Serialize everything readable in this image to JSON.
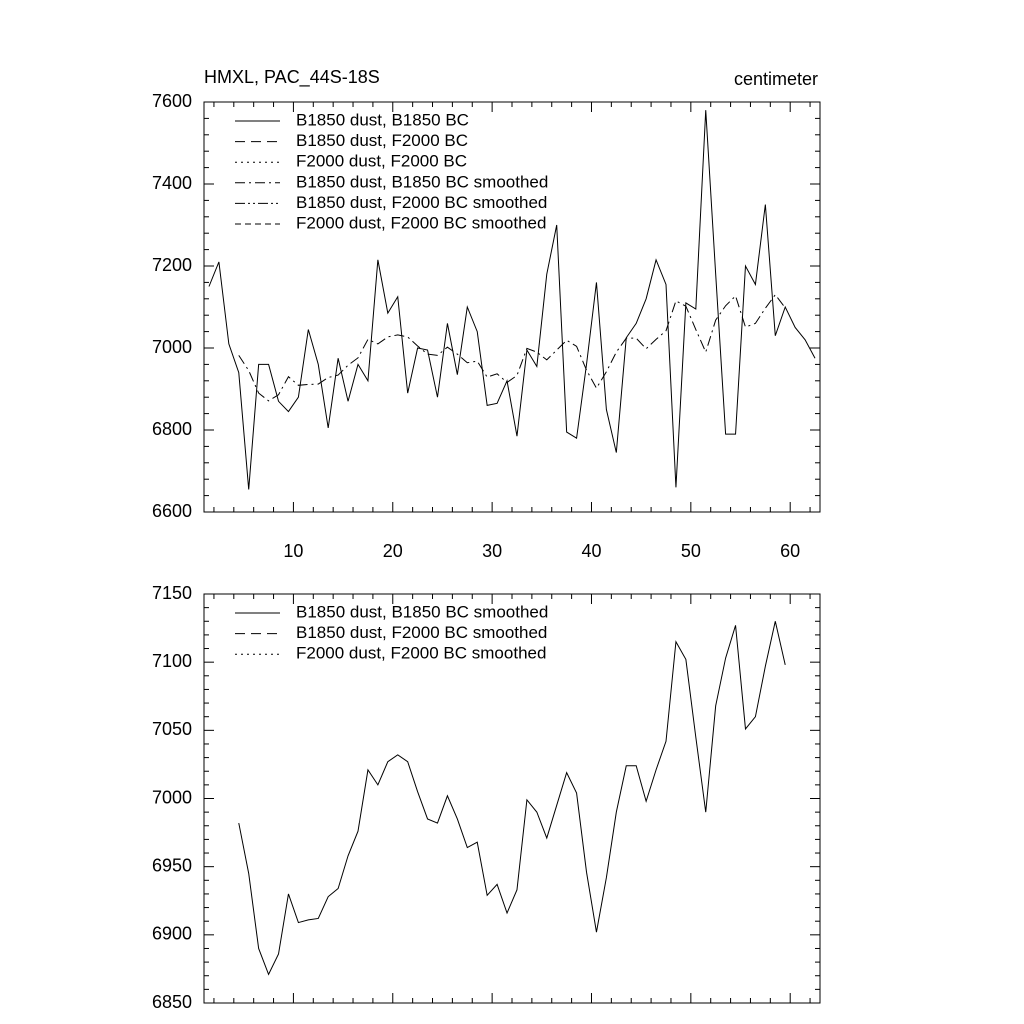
{
  "chart_data": [
    {
      "type": "line",
      "title": "HMXL, PAC_44S-18S",
      "units": "centimeter",
      "x": [
        1.5,
        2.5,
        3.5,
        4.5,
        5.5,
        6.5,
        7.5,
        8.5,
        9.5,
        10.5,
        11.5,
        12.5,
        13.5,
        14.5,
        15.5,
        16.5,
        17.5,
        18.5,
        19.5,
        20.5,
        21.5,
        22.5,
        23.5,
        24.5,
        25.5,
        26.5,
        27.5,
        28.5,
        29.5,
        30.5,
        31.5,
        32.5,
        33.5,
        34.5,
        35.5,
        36.5,
        37.5,
        38.5,
        39.5,
        40.5,
        41.5,
        42.5,
        43.5,
        44.5,
        45.5,
        46.5,
        47.5,
        48.5,
        49.5,
        50.5,
        51.5,
        52.5,
        53.5,
        54.5,
        55.5,
        56.5,
        57.5,
        58.5,
        59.5,
        60.5,
        61.5,
        62.5
      ],
      "xlim": [
        1,
        63
      ],
      "xticks": [
        10,
        20,
        30,
        40,
        50,
        60
      ],
      "ylim": [
        6600,
        7600
      ],
      "yticks": [
        6600,
        6800,
        7000,
        7200,
        7400,
        7600
      ],
      "series": [
        {
          "name": "B1850 dust, B1850 BC",
          "color": "#000000",
          "dash": "solid",
          "values": [
            7150,
            7210,
            7010,
            6940,
            6655,
            6960,
            6960,
            6870,
            6845,
            6880,
            7045,
            6960,
            6805,
            6975,
            6870,
            6960,
            6920,
            7215,
            7085,
            7125,
            6890,
            7000,
            6995,
            6880,
            7060,
            6935,
            7100,
            7040,
            6860,
            6865,
            6920,
            6785,
            6995,
            6955,
            7180,
            7300,
            6795,
            6780,
            6960,
            7160,
            6850,
            6745,
            7025,
            7060,
            7120,
            7215,
            7155,
            6660,
            7110,
            7095,
            7580,
            7180,
            6790,
            6790,
            7200,
            7155,
            7350,
            7030,
            7100,
            7050,
            7020,
            6975
          ]
        },
        {
          "name": "B1850 dust, F2000 BC",
          "color": "#000000",
          "dash": "dashed",
          "values": [
            null,
            null,
            null,
            null,
            null,
            null,
            null,
            null,
            null,
            null,
            null,
            null,
            null,
            null,
            null,
            null,
            null,
            null,
            null,
            null,
            null,
            null,
            null,
            null,
            null,
            null,
            null,
            null,
            null,
            null,
            null,
            null,
            null,
            null,
            null,
            null,
            null,
            null,
            null,
            null,
            null,
            null,
            null,
            null,
            null,
            null,
            null,
            null,
            null,
            null,
            null,
            null,
            null,
            null,
            null,
            null,
            null,
            null,
            null,
            null,
            null,
            null
          ]
        },
        {
          "name": "F2000 dust, F2000 BC",
          "color": "#000000",
          "dash": "dotted",
          "values": [
            null,
            null,
            null,
            null,
            null,
            null,
            null,
            null,
            null,
            null,
            null,
            null,
            null,
            null,
            null,
            null,
            null,
            null,
            null,
            null,
            null,
            null,
            null,
            null,
            null,
            null,
            null,
            null,
            null,
            null,
            null,
            null,
            null,
            null,
            null,
            null,
            null,
            null,
            null,
            null,
            null,
            null,
            null,
            null,
            null,
            null,
            null,
            null,
            null,
            null,
            null,
            null,
            null,
            null,
            null,
            null,
            null,
            null,
            null,
            null,
            null,
            null
          ]
        },
        {
          "name": "B1850 dust, B1850 BC smoothed",
          "color": "#000000",
          "dash": "dash-dot",
          "values": [
            null,
            null,
            null,
            6982,
            6945,
            6890,
            6871,
            6886,
            6930,
            6909,
            6911,
            6912,
            6928,
            6934,
            6958,
            6976,
            7021,
            7010,
            7027,
            7032,
            7027,
            7005,
            6985,
            6982,
            7002,
            6985,
            6964,
            6968,
            6929,
            6937,
            6916,
            6933,
            6999,
            6990,
            6971,
            6995,
            7019,
            7004,
            6946,
            6902,
            6942,
            6990,
            7024,
            7024,
            6998,
            7021,
            7042,
            7115,
            7102,
            7045,
            6990,
            7068,
            7103,
            7127,
            7051,
            7060,
            7097,
            7130,
            7098,
            null,
            null,
            null
          ]
        },
        {
          "name": "B1850 dust, F2000 BC smoothed",
          "color": "#000000",
          "dash": "dash-dot-dot",
          "values": [
            null,
            null,
            null,
            null,
            null,
            null,
            null,
            null,
            null,
            null,
            null,
            null,
            null,
            null,
            null,
            null,
            null,
            null,
            null,
            null,
            null,
            null,
            null,
            null,
            null,
            null,
            null,
            null,
            null,
            null,
            null,
            null,
            null,
            null,
            null,
            null,
            null,
            null,
            null,
            null,
            null,
            null,
            null,
            null,
            null,
            null,
            null,
            null,
            null,
            null,
            null,
            null,
            null,
            null,
            null,
            null,
            null,
            null,
            null,
            null,
            null,
            null
          ]
        },
        {
          "name": "F2000 dust, F2000 BC smoothed",
          "color": "#000000",
          "dash": "short-dashed",
          "values": [
            null,
            null,
            null,
            null,
            null,
            null,
            null,
            null,
            null,
            null,
            null,
            null,
            null,
            null,
            null,
            null,
            null,
            null,
            null,
            null,
            null,
            null,
            null,
            null,
            null,
            null,
            null,
            null,
            null,
            null,
            null,
            null,
            null,
            null,
            null,
            null,
            null,
            null,
            null,
            null,
            null,
            null,
            null,
            null,
            null,
            null,
            null,
            null,
            null,
            null,
            null,
            null,
            null,
            null,
            null,
            null,
            null,
            null,
            null,
            null,
            null,
            null
          ]
        }
      ]
    },
    {
      "type": "line",
      "x": [
        1.5,
        2.5,
        3.5,
        4.5,
        5.5,
        6.5,
        7.5,
        8.5,
        9.5,
        10.5,
        11.5,
        12.5,
        13.5,
        14.5,
        15.5,
        16.5,
        17.5,
        18.5,
        19.5,
        20.5,
        21.5,
        22.5,
        23.5,
        24.5,
        25.5,
        26.5,
        27.5,
        28.5,
        29.5,
        30.5,
        31.5,
        32.5,
        33.5,
        34.5,
        35.5,
        36.5,
        37.5,
        38.5,
        39.5,
        40.5,
        41.5,
        42.5,
        43.5,
        44.5,
        45.5,
        46.5,
        47.5,
        48.5,
        49.5,
        50.5,
        51.5,
        52.5,
        53.5,
        54.5,
        55.5,
        56.5,
        57.5,
        58.5,
        59.5,
        60.5,
        61.5,
        62.5
      ],
      "xlim": [
        1,
        63
      ],
      "xticks": [
        10,
        20,
        30,
        40,
        50,
        60
      ],
      "ylim": [
        6850,
        7150
      ],
      "yticks": [
        6850,
        6900,
        6950,
        7000,
        7050,
        7100,
        7150
      ],
      "series": [
        {
          "name": "B1850 dust, B1850 BC smoothed",
          "color": "#000000",
          "dash": "solid",
          "values": [
            null,
            null,
            null,
            6982,
            6945,
            6890,
            6871,
            6886,
            6930,
            6909,
            6911,
            6912,
            6928,
            6934,
            6958,
            6976,
            7021,
            7010,
            7027,
            7032,
            7027,
            7005,
            6985,
            6982,
            7002,
            6985,
            6964,
            6968,
            6929,
            6937,
            6916,
            6933,
            6999,
            6990,
            6971,
            6995,
            7019,
            7004,
            6946,
            6902,
            6942,
            6990,
            7024,
            7024,
            6998,
            7021,
            7042,
            7115,
            7102,
            7045,
            6990,
            7068,
            7103,
            7127,
            7051,
            7060,
            7097,
            7130,
            7098,
            null,
            null,
            null
          ]
        },
        {
          "name": "B1850 dust, F2000 BC smoothed",
          "color": "#000000",
          "dash": "dashed",
          "values": [
            null,
            null,
            null,
            null,
            null,
            null,
            null,
            null,
            null,
            null,
            null,
            null,
            null,
            null,
            null,
            null,
            null,
            null,
            null,
            null,
            null,
            null,
            null,
            null,
            null,
            null,
            null,
            null,
            null,
            null,
            null,
            null,
            null,
            null,
            null,
            null,
            null,
            null,
            null,
            null,
            null,
            null,
            null,
            null,
            null,
            null,
            null,
            null,
            null,
            null,
            null,
            null,
            null,
            null,
            null,
            null,
            null,
            null,
            null,
            null,
            null,
            null
          ]
        },
        {
          "name": "F2000 dust, F2000 BC smoothed",
          "color": "#000000",
          "dash": "dotted",
          "values": [
            null,
            null,
            null,
            null,
            null,
            null,
            null,
            null,
            null,
            null,
            null,
            null,
            null,
            null,
            null,
            null,
            null,
            null,
            null,
            null,
            null,
            null,
            null,
            null,
            null,
            null,
            null,
            null,
            null,
            null,
            null,
            null,
            null,
            null,
            null,
            null,
            null,
            null,
            null,
            null,
            null,
            null,
            null,
            null,
            null,
            null,
            null,
            null,
            null,
            null,
            null,
            null,
            null,
            null,
            null,
            null,
            null,
            null,
            null,
            null,
            null,
            null
          ]
        }
      ]
    }
  ]
}
